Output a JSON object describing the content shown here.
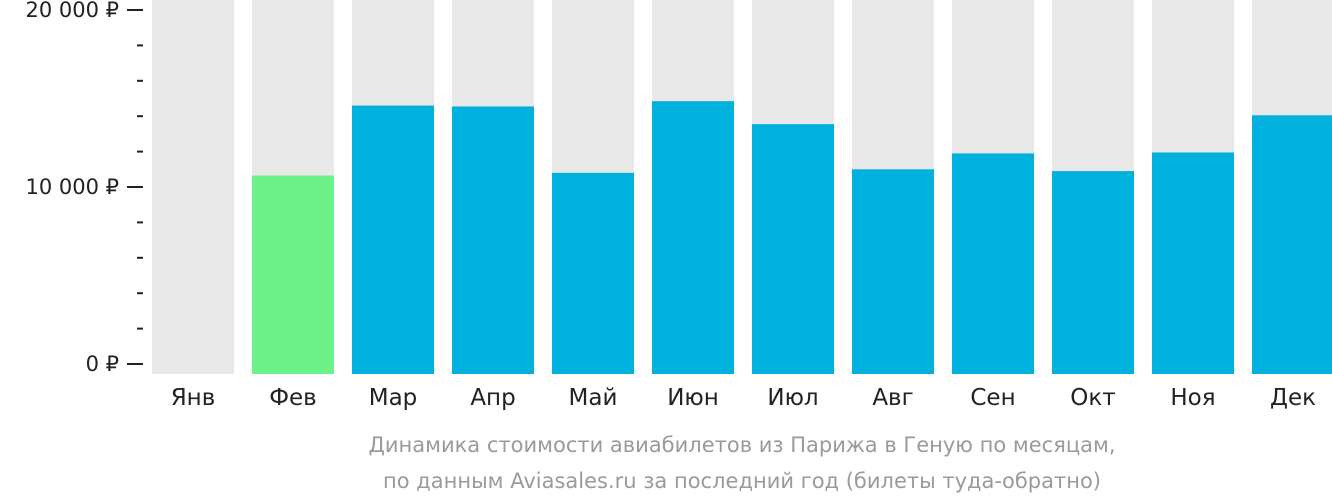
{
  "colors": {
    "bar_default": "#00b1dd",
    "bar_highlight": "#6cf288",
    "bar_background": "#e8e8e8",
    "axis": "#222222",
    "caption": "#9a9a9a"
  },
  "caption": {
    "line1": "Динамика стоимости авиабилетов из Парижа в Геную по месяцам,",
    "line2": "по данным Aviasales.ru за последний год (билеты туда-обратно)"
  },
  "chart_data": {
    "type": "bar",
    "categories": [
      "Янв",
      "Фев",
      "Мар",
      "Апр",
      "Май",
      "Июн",
      "Июл",
      "Авг",
      "Сен",
      "Окт",
      "Ноя",
      "Дек"
    ],
    "values": [
      0,
      10650,
      14600,
      14550,
      10800,
      14850,
      13550,
      11000,
      11900,
      10900,
      11950,
      14050
    ],
    "highlight_index": 1,
    "ylim": [
      0,
      20000
    ],
    "yticks": [
      {
        "value": 0,
        "label": "0 ₽"
      },
      {
        "value": 10000,
        "label": "10 000 ₽"
      },
      {
        "value": 20000,
        "label": "20 000 ₽"
      }
    ],
    "minor_tick_step": 2000,
    "grid": false,
    "legend": "none"
  }
}
